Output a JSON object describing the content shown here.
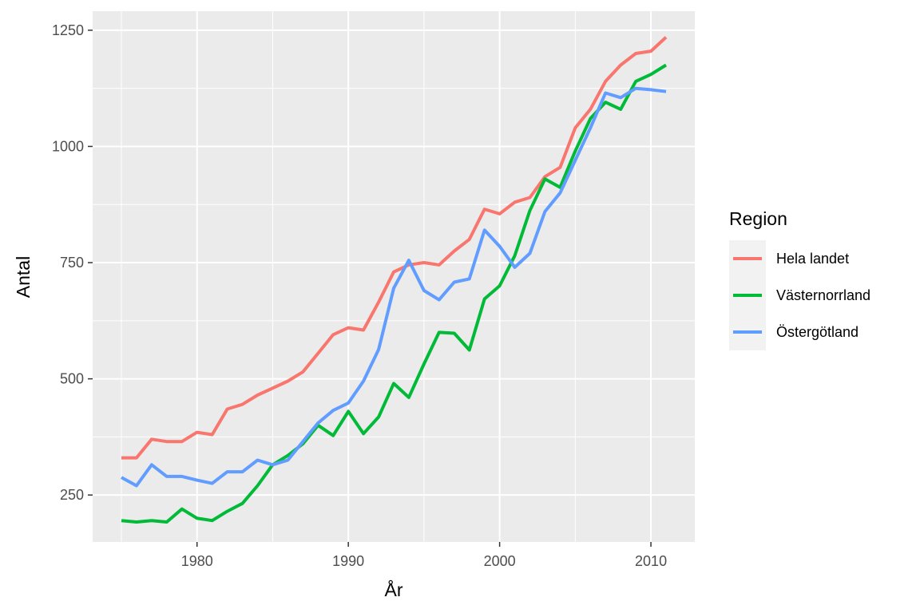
{
  "chart_data": {
    "type": "line",
    "xlabel": "År",
    "ylabel": "Antal",
    "xlim": [
      1973.1,
      2012.9
    ],
    "ylim": [
      149,
      1291
    ],
    "x_ticks": [
      1980,
      1990,
      2000,
      2010
    ],
    "y_ticks": [
      250,
      500,
      750,
      1000,
      1250
    ],
    "x_tick_labels": [
      "1980",
      "1990",
      "2000",
      "2010"
    ],
    "y_tick_labels": [
      "250",
      "500",
      "750",
      "1000",
      "1250"
    ],
    "grid": true,
    "legend": {
      "title": "Region",
      "position": "right"
    },
    "x": [
      1975,
      1976,
      1977,
      1978,
      1979,
      1980,
      1981,
      1982,
      1983,
      1984,
      1985,
      1986,
      1987,
      1988,
      1989,
      1990,
      1991,
      1992,
      1993,
      1994,
      1995,
      1996,
      1997,
      1998,
      1999,
      2000,
      2001,
      2002,
      2003,
      2004,
      2005,
      2006,
      2007,
      2008,
      2009,
      2010,
      2011
    ],
    "series": [
      {
        "name": "Hela landet",
        "color": "#F8766D",
        "values": [
          330,
          330,
          370,
          365,
          365,
          385,
          380,
          435,
          445,
          465,
          480,
          495,
          515,
          555,
          595,
          610,
          605,
          665,
          730,
          745,
          750,
          745,
          775,
          800,
          865,
          855,
          880,
          890,
          935,
          955,
          1040,
          1080,
          1140,
          1175,
          1200,
          1205,
          1235
        ]
      },
      {
        "name": "Västernorrland",
        "color": "#00BA38",
        "values": [
          195,
          192,
          195,
          192,
          220,
          200,
          195,
          215,
          232,
          270,
          315,
          335,
          360,
          400,
          378,
          430,
          382,
          418,
          490,
          460,
          532,
          600,
          598,
          562,
          672,
          700,
          765,
          862,
          930,
          912,
          990,
          1060,
          1095,
          1080,
          1140,
          1155,
          1175
        ]
      },
      {
        "name": "Östergötland",
        "color": "#619CFF",
        "values": [
          288,
          270,
          315,
          290,
          290,
          282,
          275,
          300,
          300,
          325,
          315,
          325,
          365,
          405,
          432,
          448,
          495,
          563,
          695,
          755,
          690,
          670,
          708,
          715,
          820,
          785,
          740,
          770,
          860,
          900,
          970,
          1040,
          1115,
          1105,
          1125,
          1122,
          1118
        ]
      }
    ]
  }
}
